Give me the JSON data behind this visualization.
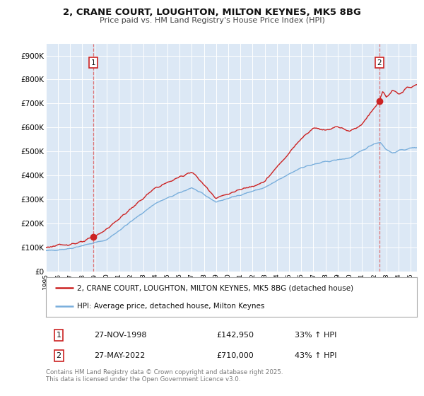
{
  "title": "2, CRANE COURT, LOUGHTON, MILTON KEYNES, MK5 8BG",
  "subtitle": "Price paid vs. HM Land Registry's House Price Index (HPI)",
  "bg_color": "#ffffff",
  "plot_bg_color": "#dce8f5",
  "grid_color": "#ffffff",
  "sale1_date": 1998.91,
  "sale1_price": 142950,
  "sale2_date": 2022.41,
  "sale2_price": 710000,
  "vline1_date": 1998.91,
  "vline2_date": 2022.41,
  "red_line_color": "#cc2222",
  "blue_line_color": "#7aafdc",
  "ylim_min": 0,
  "ylim_max": 950000,
  "xlim_min": 1995,
  "xlim_max": 2025.5,
  "legend_label_red": "2, CRANE COURT, LOUGHTON, MILTON KEYNES, MK5 8BG (detached house)",
  "legend_label_blue": "HPI: Average price, detached house, Milton Keynes",
  "table_row1": [
    "1",
    "27-NOV-1998",
    "£142,950",
    "33% ↑ HPI"
  ],
  "table_row2": [
    "2",
    "27-MAY-2022",
    "£710,000",
    "43% ↑ HPI"
  ],
  "footnote": "Contains HM Land Registry data © Crown copyright and database right 2025.\nThis data is licensed under the Open Government Licence v3.0.",
  "yticks": [
    0,
    100000,
    200000,
    300000,
    400000,
    500000,
    600000,
    700000,
    800000,
    900000
  ],
  "ytick_labels": [
    "£0",
    "£100K",
    "£200K",
    "£300K",
    "£400K",
    "£500K",
    "£600K",
    "£700K",
    "£800K",
    "£900K"
  ]
}
